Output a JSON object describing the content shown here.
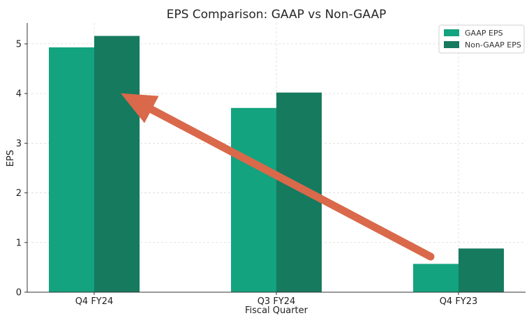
{
  "chart_data": {
    "type": "bar",
    "title": "EPS Comparison: GAAP vs Non-GAAP",
    "xlabel": "Fiscal Quarter",
    "ylabel": "EPS",
    "categories": [
      "Q4 FY24",
      "Q3 FY24",
      "Q4 FY23"
    ],
    "series": [
      {
        "name": "GAAP EPS",
        "values": [
          4.93,
          3.71,
          0.57
        ],
        "color": "#13a37f"
      },
      {
        "name": "Non-GAAP EPS",
        "values": [
          5.16,
          4.02,
          0.88
        ],
        "color": "#167a5f"
      }
    ],
    "ylim": [
      0,
      5.42
    ],
    "yticks": [
      0,
      1,
      2,
      3,
      4,
      5
    ],
    "grid": true,
    "legend_position": "top-right",
    "annotation": {
      "type": "arrow",
      "color": "#d9694a",
      "from": {
        "category": "Q4 FY23",
        "value": 0.8
      },
      "to": {
        "category": "Q4 FY24",
        "value": 3.95
      }
    }
  }
}
